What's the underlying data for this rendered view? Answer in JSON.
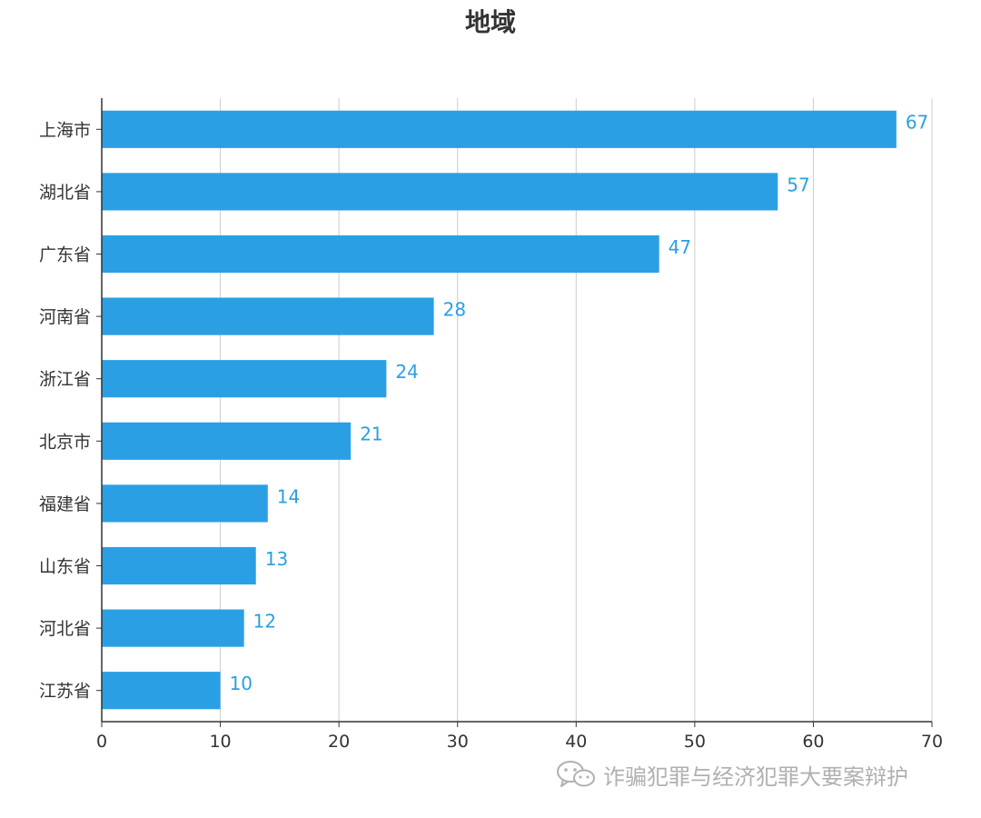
{
  "colors": {
    "bar": "#2b9fe4",
    "data_label": "#2b9fe4",
    "gridline": "#cccccc",
    "axis": "#333333",
    "text": "#333333",
    "watermark": "#b0b0b0"
  },
  "watermark": {
    "icon": "wechat-icon",
    "text": "诈骗犯罪与经济犯罪大要案辩护"
  },
  "chart_data": {
    "type": "bar",
    "orientation": "horizontal",
    "title": "地域",
    "categories": [
      "上海市",
      "湖北省",
      "广东省",
      "河南省",
      "浙江省",
      "北京市",
      "福建省",
      "山东省",
      "河北省",
      "江苏省"
    ],
    "values": [
      67,
      57,
      47,
      28,
      24,
      21,
      14,
      13,
      12,
      10
    ],
    "xlim": [
      0,
      70
    ],
    "xticks": [
      "0",
      "10",
      "20",
      "30",
      "40",
      "50",
      "60",
      "70"
    ],
    "grid": true,
    "data_labels": true,
    "legend": "none"
  }
}
